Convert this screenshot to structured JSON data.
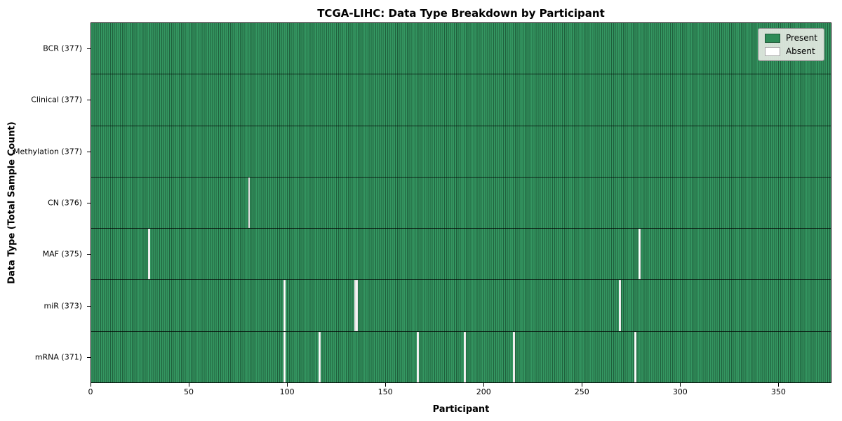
{
  "chart_data": {
    "type": "heatmap",
    "title": "TCGA-LIHC: Data Type Breakdown by Participant",
    "xlabel": "Participant",
    "ylabel": "Data Type (Total Sample Count)",
    "x_ticks": [
      0,
      50,
      100,
      150,
      200,
      250,
      300,
      350
    ],
    "x_range": [
      0,
      377
    ],
    "n_participants": 377,
    "grid": false,
    "legend_position": "upper right",
    "legend": [
      {
        "label": "Present",
        "color": "#2e8b57"
      },
      {
        "label": "Absent",
        "color": "#ffffff"
      }
    ],
    "colors": {
      "present_fill": "#349661",
      "cell_edge": "#1f5f3c",
      "absent_fill": "#ffffff",
      "row_divider": "#1a2e21",
      "axes_spine": "#000000",
      "legend_background": "#e4e9e3"
    },
    "rows": [
      {
        "label": "BCR (377)",
        "data_type": "BCR",
        "total_samples": 377,
        "absent_participants": []
      },
      {
        "label": "Clinical (377)",
        "data_type": "Clinical",
        "total_samples": 377,
        "absent_participants": []
      },
      {
        "label": "Methylation (377)",
        "data_type": "Methylation",
        "total_samples": 377,
        "absent_participants": []
      },
      {
        "label": "CN (376)",
        "data_type": "CN",
        "total_samples": 376,
        "absent_participants": [
          80
        ]
      },
      {
        "label": "MAF (375)",
        "data_type": "MAF",
        "total_samples": 375,
        "absent_participants": [
          29,
          279
        ]
      },
      {
        "label": "miR (373)",
        "data_type": "miR",
        "total_samples": 373,
        "absent_participants": [
          98,
          134,
          135,
          269
        ]
      },
      {
        "label": "mRNA (371)",
        "data_type": "mRNA",
        "total_samples": 371,
        "absent_participants": [
          98,
          116,
          166,
          190,
          215,
          277
        ]
      }
    ]
  }
}
